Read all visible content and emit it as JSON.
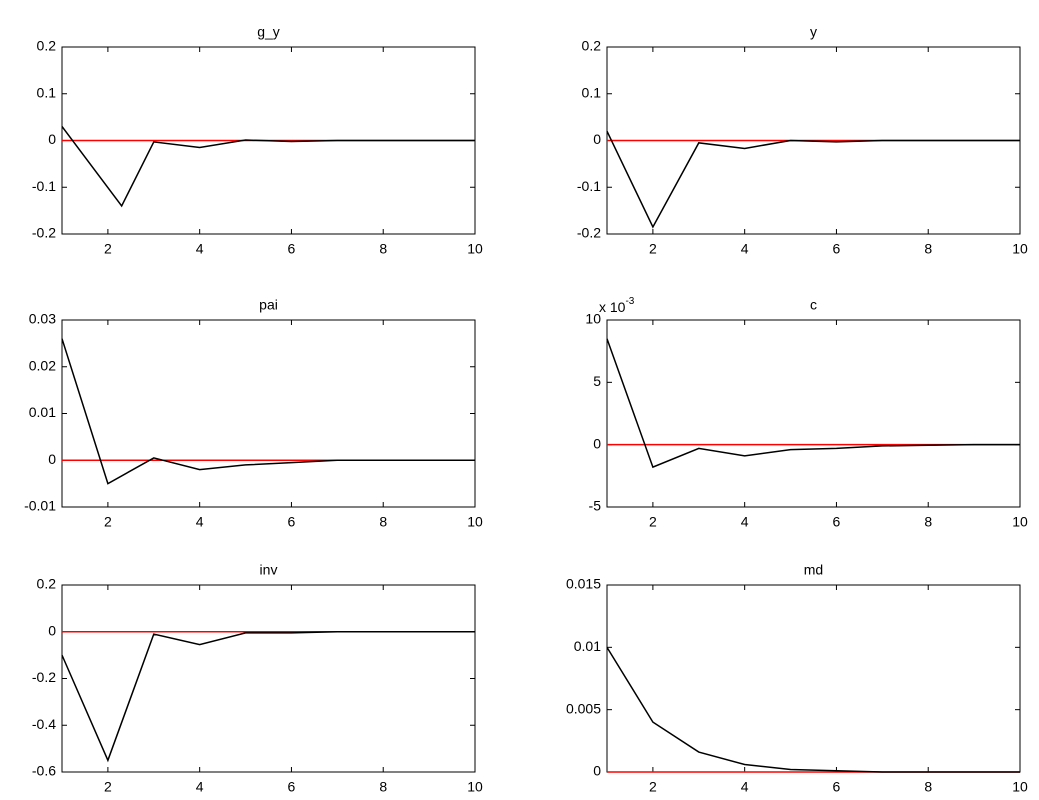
{
  "chart_data": [
    {
      "type": "line",
      "title": "g_y",
      "x": [
        1,
        2.3,
        3,
        4,
        5,
        6,
        7,
        8,
        9,
        10
      ],
      "series": [
        {
          "color": "#000000",
          "values": [
            0.03,
            -0.14,
            -0.003,
            -0.015,
            0.001,
            -0.002,
            0,
            0,
            0,
            0
          ]
        },
        {
          "color": "#ff0000",
          "values": [
            0,
            0,
            0,
            0,
            0,
            0,
            0,
            0,
            0,
            0
          ]
        }
      ],
      "xlim": [
        1,
        10
      ],
      "xticks": [
        2,
        4,
        6,
        8,
        10
      ],
      "ylim": [
        -0.2,
        0.2
      ],
      "yticks": [
        -0.2,
        -0.1,
        0,
        0.1,
        0.2
      ]
    },
    {
      "type": "line",
      "title": "y",
      "x": [
        1,
        2,
        3,
        4,
        5,
        6,
        7,
        8,
        9,
        10
      ],
      "series": [
        {
          "color": "#000000",
          "values": [
            0.02,
            -0.185,
            -0.005,
            -0.017,
            0,
            -0.003,
            0,
            0,
            0,
            0
          ]
        },
        {
          "color": "#ff0000",
          "values": [
            0,
            0,
            0,
            0,
            0,
            0,
            0,
            0,
            0,
            0
          ]
        }
      ],
      "xlim": [
        1,
        10
      ],
      "xticks": [
        2,
        4,
        6,
        8,
        10
      ],
      "ylim": [
        -0.2,
        0.2
      ],
      "yticks": [
        -0.2,
        -0.1,
        0,
        0.1,
        0.2
      ]
    },
    {
      "type": "line",
      "title": "pai",
      "x": [
        1,
        2,
        3,
        4,
        5,
        6,
        7,
        8,
        9,
        10
      ],
      "series": [
        {
          "color": "#000000",
          "values": [
            0.026,
            -0.005,
            0.0005,
            -0.002,
            -0.001,
            -0.0005,
            0,
            0,
            0,
            0
          ]
        },
        {
          "color": "#ff0000",
          "values": [
            0,
            0,
            0,
            0,
            0,
            0,
            0,
            0,
            0,
            0
          ]
        }
      ],
      "xlim": [
        1,
        10
      ],
      "xticks": [
        2,
        4,
        6,
        8,
        10
      ],
      "ylim": [
        -0.01,
        0.03
      ],
      "yticks": [
        -0.01,
        0,
        0.01,
        0.02,
        0.03
      ]
    },
    {
      "type": "line",
      "title": "c",
      "y_multiplier": {
        "base": "x 10",
        "exponent": "-3"
      },
      "x": [
        1,
        2,
        3,
        4,
        5,
        6,
        7,
        8,
        9,
        10
      ],
      "series": [
        {
          "color": "#000000",
          "values": [
            8.5,
            -1.8,
            -0.3,
            -0.9,
            -0.4,
            -0.3,
            -0.1,
            -0.05,
            0,
            0
          ]
        },
        {
          "color": "#ff0000",
          "values": [
            0,
            0,
            0,
            0,
            0,
            0,
            0,
            0,
            0,
            0
          ]
        }
      ],
      "xlim": [
        1,
        10
      ],
      "xticks": [
        2,
        4,
        6,
        8,
        10
      ],
      "ylim": [
        -5,
        10
      ],
      "yticks": [
        -5,
        0,
        5,
        10
      ]
    },
    {
      "type": "line",
      "title": "inv",
      "x": [
        1,
        2,
        3,
        4,
        5,
        6,
        7,
        8,
        9,
        10
      ],
      "series": [
        {
          "color": "#000000",
          "values": [
            -0.1,
            -0.55,
            -0.01,
            -0.055,
            -0.005,
            -0.005,
            0,
            0,
            0,
            0
          ]
        },
        {
          "color": "#ff0000",
          "values": [
            0,
            0,
            0,
            0,
            0,
            0,
            0,
            0,
            0,
            0
          ]
        }
      ],
      "xlim": [
        1,
        10
      ],
      "xticks": [
        2,
        4,
        6,
        8,
        10
      ],
      "ylim": [
        -0.6,
        0.2
      ],
      "yticks": [
        -0.6,
        -0.4,
        -0.2,
        0,
        0.2
      ]
    },
    {
      "type": "line",
      "title": "md",
      "x": [
        1,
        2,
        3,
        4,
        5,
        6,
        7,
        8,
        9,
        10
      ],
      "series": [
        {
          "color": "#000000",
          "values": [
            0.01,
            0.004,
            0.0016,
            0.0006,
            0.0002,
            0.0001,
            0,
            0,
            0,
            0
          ]
        },
        {
          "color": "#ff0000",
          "values": [
            0,
            0,
            0,
            0,
            0,
            0,
            0,
            0,
            0,
            0
          ]
        }
      ],
      "xlim": [
        1,
        10
      ],
      "xticks": [
        2,
        4,
        6,
        8,
        10
      ],
      "ylim": [
        0,
        0.015
      ],
      "yticks": [
        0,
        0.005,
        0.01,
        0.015
      ]
    }
  ]
}
